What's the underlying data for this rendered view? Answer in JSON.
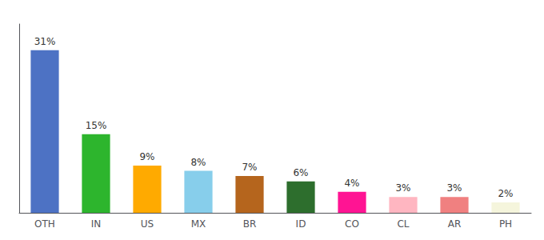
{
  "chart_data": {
    "type": "bar",
    "categories": [
      "OTH",
      "IN",
      "US",
      "MX",
      "BR",
      "ID",
      "CO",
      "CL",
      "AR",
      "PH"
    ],
    "values": [
      31,
      15,
      9,
      8,
      7,
      6,
      4,
      3,
      3,
      2
    ],
    "value_labels": [
      "31%",
      "15%",
      "9%",
      "8%",
      "7%",
      "6%",
      "4%",
      "3%",
      "3%",
      "2%"
    ],
    "colors": [
      "#4d72c4",
      "#2db52d",
      "#ffaa00",
      "#87ceeb",
      "#b5651d",
      "#2d6e2d",
      "#ff1493",
      "#ffb6c1",
      "#f08080",
      "#f5f5dc"
    ],
    "ylim": [
      0,
      36
    ],
    "grid": false,
    "data_labels": true,
    "tick_labels": "x"
  }
}
